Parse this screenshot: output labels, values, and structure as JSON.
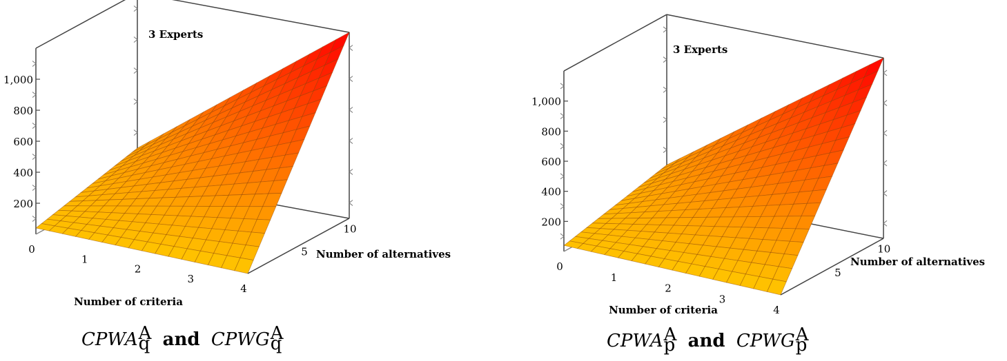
{
  "chart_data": [
    {
      "type": "surface",
      "annotation": "3 Experts",
      "xlabel": "Number of criteria",
      "ylabel": "Number of alternatives",
      "x_ticks": [
        "0",
        "1",
        "2",
        "3",
        "4"
      ],
      "y_ticks": [
        "5",
        "10"
      ],
      "z_ticks": [
        "200",
        "400",
        "600",
        "800",
        "1,000"
      ],
      "x": [
        0,
        4
      ],
      "y": [
        0,
        12
      ],
      "z_corners": {
        "x0_y0": 40,
        "x4_y0": 0,
        "x0_y12": 200,
        "x4_y12": 1200
      },
      "zlim": [
        0,
        1200
      ],
      "colormap": [
        "#ffc700",
        "#ff0000"
      ],
      "caption": {
        "base1": "CPWA",
        "and": "and",
        "base2": "CPWG",
        "sup": "A",
        "sub": "q"
      }
    },
    {
      "type": "surface",
      "annotation": "3 Experts",
      "xlabel": "Number of criteria",
      "ylabel": "Number of alternatives",
      "x_ticks": [
        "0",
        "1",
        "2",
        "3",
        "4"
      ],
      "y_ticks": [
        "5",
        "10"
      ],
      "z_ticks": [
        "200",
        "400",
        "600",
        "800",
        "1,000"
      ],
      "x": [
        0,
        4
      ],
      "y": [
        0,
        12
      ],
      "z_corners": {
        "x0_y0": 40,
        "x4_y0": 0,
        "x0_y12": 200,
        "x4_y12": 1200
      },
      "zlim": [
        0,
        1200
      ],
      "colormap": [
        "#ffc700",
        "#ff0000"
      ],
      "caption": {
        "base1": "CPWA",
        "and": "and",
        "base2": "CPWG",
        "sup": "A",
        "sub": "p"
      }
    }
  ]
}
